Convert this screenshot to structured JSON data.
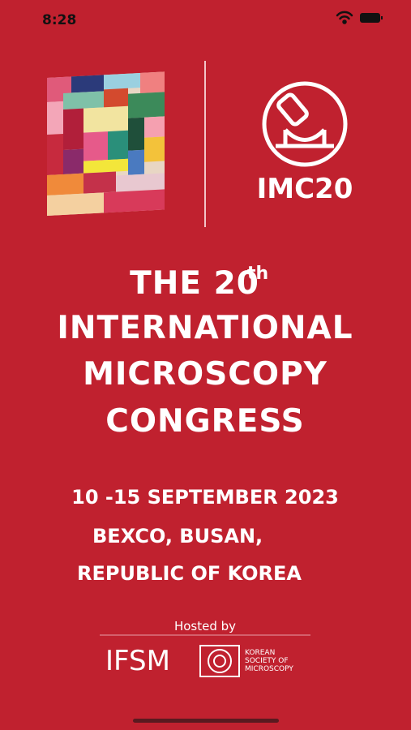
{
  "status_bar": {
    "time": "8:28"
  },
  "logo": {
    "text": "IMC20"
  },
  "title": {
    "line1_main": "THE 20",
    "line1_sup": "th",
    "line2": "INTERNATIONAL",
    "line3": "MICROSCOPY",
    "line4": "CONGRESS"
  },
  "event": {
    "dates": "10 -15 SEPTEMBER 2023",
    "venue": "BEXCO, BUSAN,",
    "country": "REPUBLIC OF KOREA"
  },
  "host": {
    "label": "Hosted by",
    "ifsm": "IFSM",
    "society_lines": [
      "KOREAN",
      "SOCIETY OF",
      "MICROSCOPY"
    ]
  }
}
